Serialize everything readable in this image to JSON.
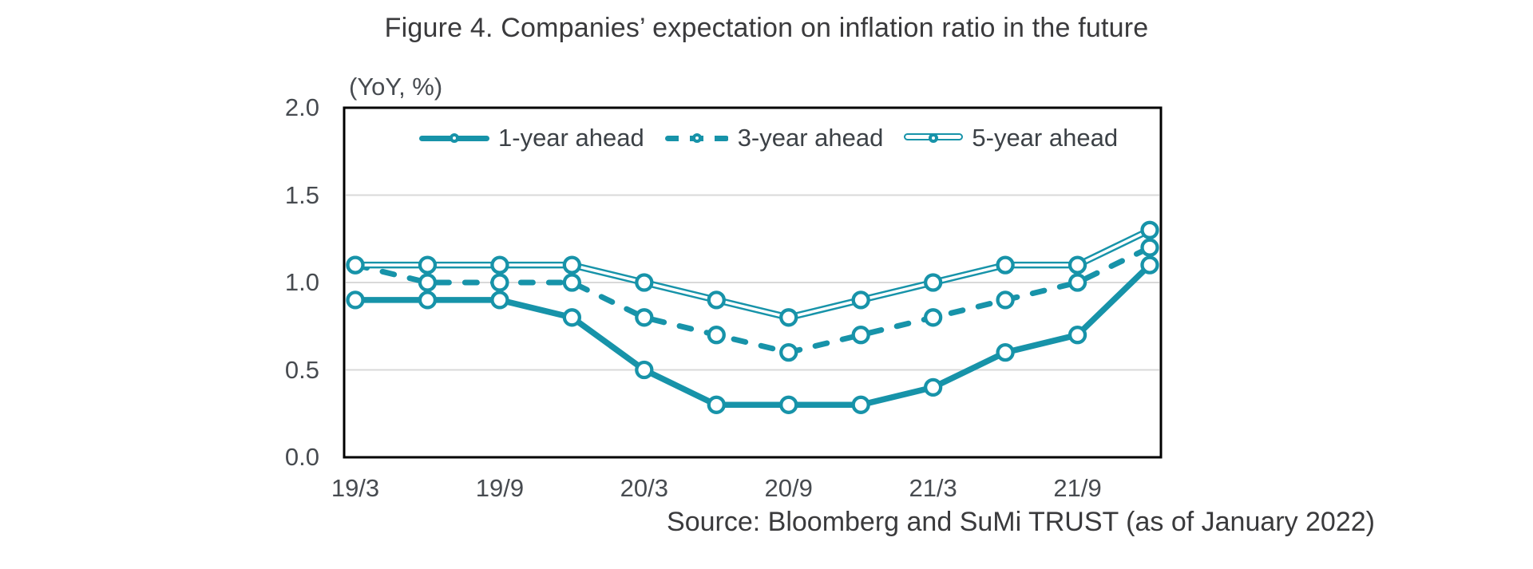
{
  "title": "Figure 4. Companies’ expectation on inflation ratio in the future",
  "axis_unit_label": "(YoY, %)",
  "source": "Source: Bloomberg and SuMi TRUST (as of January 2022)",
  "colors": {
    "accent": "#1793a9",
    "grid": "#d9d9d9",
    "plot_border": "#000000",
    "title_text": "#3a3a3c",
    "tick_text": "#474b50",
    "marker_fill": "#ffffff"
  },
  "chart_data": {
    "type": "line",
    "x": [
      "19/3",
      "19/6",
      "19/9",
      "19/12",
      "20/3",
      "20/6",
      "20/9",
      "20/12",
      "21/3",
      "21/6",
      "21/9",
      "21/12"
    ],
    "x_tick_indices": [
      0,
      2,
      4,
      6,
      8,
      10
    ],
    "x_tick_labels": [
      "19/3",
      "19/9",
      "20/3",
      "20/9",
      "21/3",
      "21/9"
    ],
    "y_ticks": [
      0.0,
      0.5,
      1.0,
      1.5,
      2.0
    ],
    "ylim": [
      0.0,
      2.0
    ],
    "ylabel": "(YoY, %)",
    "grid": "horizontal",
    "marker": "open-circle",
    "legend_position": "top-inside",
    "series": [
      {
        "name": "1-year ahead",
        "style": "solid",
        "values": [
          0.9,
          0.9,
          0.9,
          0.8,
          0.5,
          0.3,
          0.3,
          0.3,
          0.4,
          0.6,
          0.7,
          1.1
        ]
      },
      {
        "name": "3-year ahead",
        "style": "dashed",
        "values": [
          1.1,
          1.0,
          1.0,
          1.0,
          0.8,
          0.7,
          0.6,
          0.7,
          0.8,
          0.9,
          1.0,
          1.2
        ]
      },
      {
        "name": "5-year ahead",
        "style": "double",
        "values": [
          1.1,
          1.1,
          1.1,
          1.1,
          1.0,
          0.9,
          0.8,
          0.9,
          1.0,
          1.1,
          1.1,
          1.3
        ]
      }
    ]
  }
}
